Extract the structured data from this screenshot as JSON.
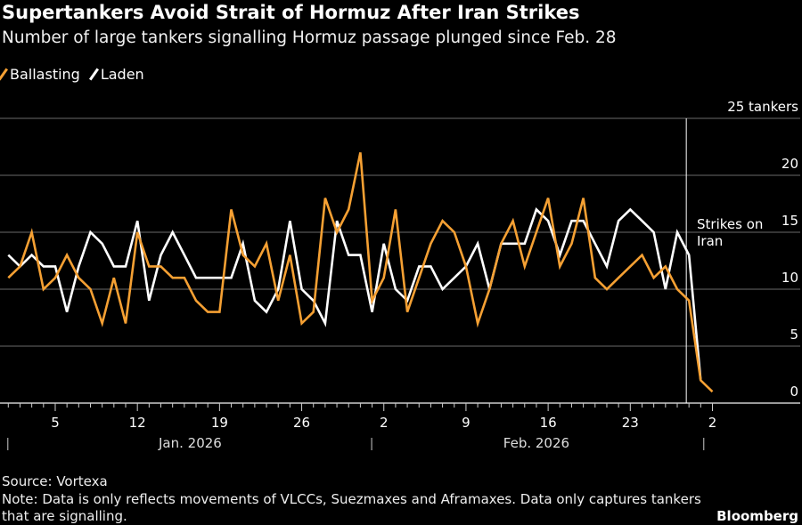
{
  "title": "Supertankers Avoid Strait of Hormuz After Iran Strikes",
  "subtitle": "Number of large tankers signalling Hormuz passage plunged since Feb. 28",
  "source": "Source: Vortexa",
  "note": "Note: Data is only reflects movements of VLCCs, Suezmaxes and Aframaxes. Data only captures tankers that are signalling.",
  "logo": "Bloomberg",
  "chart_data": {
    "type": "line",
    "title": "Supertankers Avoid Strait of Hormuz After Iran Strikes",
    "x_start": "2026-01-01",
    "x_step": "1 day",
    "ylim": [
      0,
      25
    ],
    "yticks": [
      "0",
      "5",
      "10",
      "15",
      "20",
      "25 tankers"
    ],
    "ytick_values": [
      0,
      5,
      10,
      15,
      20,
      25
    ],
    "xtick_labels": [
      "5",
      "12",
      "19",
      "26",
      "2",
      "9",
      "16",
      "23",
      "2"
    ],
    "xtick_index": [
      4,
      11,
      18,
      25,
      32,
      39,
      46,
      53,
      60
    ],
    "month_labels": [
      "Jan. 2026",
      "Feb. 2026"
    ],
    "grid": true,
    "legend_position": "top-left",
    "annotation": {
      "text_line1": "Strikes on",
      "text_line2": "Iran",
      "index": 58
    },
    "series": [
      {
        "name": "Ballasting",
        "color": "#f5a033",
        "values": [
          11,
          12,
          15,
          10,
          11,
          13,
          11,
          10,
          7,
          11,
          7,
          15,
          12,
          12,
          11,
          11,
          9,
          8,
          8,
          17,
          13,
          12,
          14,
          9,
          13,
          7,
          8,
          18,
          15,
          17,
          22,
          9,
          11,
          17,
          8,
          11,
          14,
          16,
          15,
          12,
          7,
          10,
          14,
          16,
          12,
          15,
          18,
          12,
          14,
          18,
          11,
          10,
          11,
          12,
          13,
          11,
          12,
          10,
          9,
          2,
          1
        ]
      },
      {
        "name": "Laden",
        "color": "#ffffff",
        "values": [
          13,
          12,
          13,
          12,
          12,
          8,
          12,
          15,
          14,
          12,
          12,
          16,
          9,
          13,
          15,
          13,
          11,
          11,
          11,
          11,
          14,
          9,
          8,
          10,
          16,
          10,
          9,
          7,
          16,
          13,
          13,
          8,
          14,
          10,
          9,
          12,
          12,
          10,
          11,
          12,
          14,
          10,
          14,
          14,
          14,
          17,
          16,
          13,
          16,
          16,
          14,
          12,
          16,
          17,
          16,
          15,
          10,
          15,
          13,
          2
        ]
      }
    ]
  }
}
